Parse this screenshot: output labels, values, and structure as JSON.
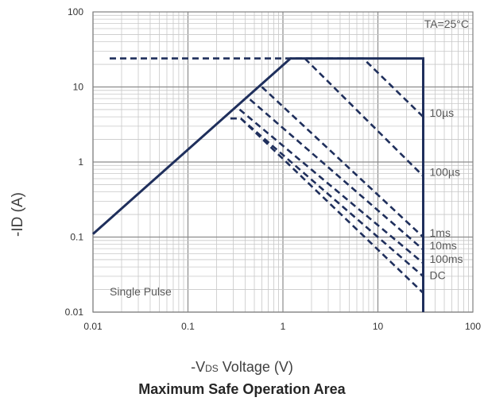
{
  "chart_data": {
    "type": "line",
    "title": "Maximum Safe Operation Area",
    "xlabel": {
      "prefix": "-V",
      "sub": "DS",
      "suffix": " Voltage (V)"
    },
    "ylabel": "-ID (A)",
    "x_scale": "log",
    "y_scale": "log",
    "xlim": [
      0.01,
      100
    ],
    "ylim": [
      0.01,
      100
    ],
    "x_ticks": [
      "0.01",
      "0.1",
      "1",
      "10",
      "100"
    ],
    "y_ticks": [
      "0.01",
      "0.1",
      "1",
      "10",
      "100"
    ],
    "grid": true,
    "annotations": {
      "temperature": "TA=25°C",
      "pulse": "Single Pulse"
    },
    "line_color": "#1f2f5c",
    "series": [
      {
        "label": "",
        "style": "solid",
        "points": [
          [
            0.01,
            0.11
          ],
          [
            1.2,
            24
          ],
          [
            30,
            24
          ],
          [
            30,
            0.01
          ]
        ]
      },
      {
        "label": "10µs",
        "style": "dashed",
        "points": [
          [
            0.015,
            24
          ],
          [
            7,
            24
          ],
          [
            30,
            4.0
          ]
        ]
      },
      {
        "label": "100µs",
        "style": "dashed",
        "points": [
          [
            1.7,
            24
          ],
          [
            30,
            0.65
          ]
        ]
      },
      {
        "label": "1ms",
        "style": "dashed",
        "points": [
          [
            0.6,
            10
          ],
          [
            30,
            0.1
          ]
        ]
      },
      {
        "label": "10ms",
        "style": "dashed",
        "points": [
          [
            0.45,
            6.8
          ],
          [
            30,
            0.068
          ]
        ]
      },
      {
        "label": "100ms",
        "style": "dashed",
        "points": [
          [
            0.35,
            5.0
          ],
          [
            30,
            0.045
          ]
        ]
      },
      {
        "label": "DC",
        "style": "dashed",
        "points": [
          [
            0.28,
            3.8
          ],
          [
            0.36,
            3.8
          ],
          [
            30,
            0.03
          ]
        ]
      }
    ],
    "dc_tail": {
      "points": [
        [
          0.36,
          3.8
        ],
        [
          30,
          0.018
        ]
      ]
    }
  }
}
